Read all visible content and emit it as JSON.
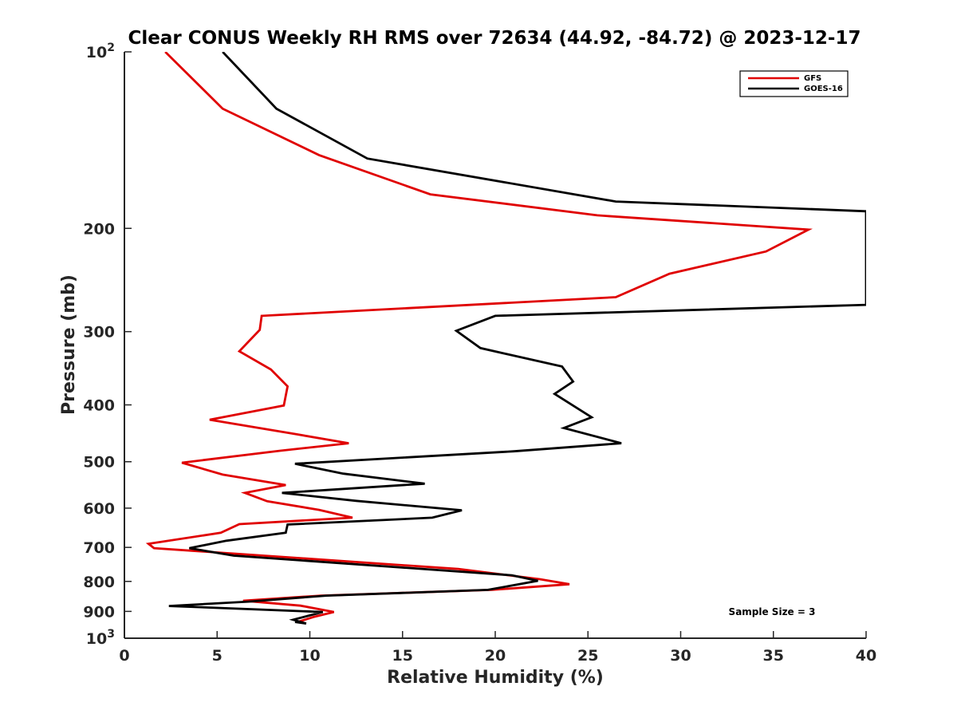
{
  "chart_data": {
    "type": "line",
    "title": "Clear CONUS Weekly RH RMS over 72634 (44.92, -84.72) @ 2023-12-17",
    "xlabel": "Relative Humidity (%)",
    "ylabel": "Pressure (mb)",
    "xlim": [
      0,
      40
    ],
    "ylim": [
      100,
      1000
    ],
    "yscale": "log",
    "yreversed": true,
    "grid": false,
    "legend_position": "top-right",
    "x_ticks": [
      "0",
      "5",
      "10",
      "15",
      "20",
      "25",
      "30",
      "35",
      "40"
    ],
    "y_ticks": [
      {
        "value": 100,
        "base": "10",
        "exp": "2"
      },
      {
        "value": 200,
        "label": "200"
      },
      {
        "value": 300,
        "label": "300"
      },
      {
        "value": 400,
        "label": "400"
      },
      {
        "value": 500,
        "label": "500"
      },
      {
        "value": 600,
        "label": "600"
      },
      {
        "value": 700,
        "label": "700"
      },
      {
        "value": 800,
        "label": "800"
      },
      {
        "value": 900,
        "label": "900"
      },
      {
        "value": 1000,
        "base": "10",
        "exp": "3"
      }
    ],
    "annotation": "Sample Size = 3",
    "series": [
      {
        "name": "GFS",
        "color": "#e00000",
        "points": [
          [
            2.2,
            100
          ],
          [
            5.3,
            125
          ],
          [
            10.5,
            150
          ],
          [
            16.5,
            175
          ],
          [
            25.5,
            190
          ],
          [
            36.9,
            201
          ],
          [
            34.6,
            219
          ],
          [
            29.4,
            239
          ],
          [
            26.5,
            262
          ],
          [
            7.4,
            282
          ],
          [
            7.3,
            298
          ],
          [
            6.2,
            324
          ],
          [
            7.9,
            348
          ],
          [
            8.8,
            372
          ],
          [
            8.6,
            401
          ],
          [
            4.6,
            424
          ],
          [
            9.3,
            449
          ],
          [
            12.1,
            465
          ],
          [
            8.4,
            479
          ],
          [
            3.1,
            502
          ],
          [
            5.3,
            526
          ],
          [
            8.7,
            548
          ],
          [
            6.5,
            565
          ],
          [
            7.7,
            584
          ],
          [
            10.5,
            604
          ],
          [
            12.3,
            623
          ],
          [
            6.2,
            639
          ],
          [
            5.2,
            661
          ],
          [
            1.3,
            690
          ],
          [
            1.6,
            702
          ],
          [
            18.0,
            762
          ],
          [
            22.4,
            793
          ],
          [
            24.0,
            809
          ],
          [
            19.8,
            827
          ],
          [
            10.6,
            846
          ],
          [
            6.4,
            863
          ],
          [
            9.5,
            880
          ],
          [
            11.3,
            902
          ],
          [
            10.2,
            920
          ],
          [
            9.4,
            937
          ]
        ]
      },
      {
        "name": "GOES-16",
        "color": "#000000",
        "points": [
          [
            5.3,
            100
          ],
          [
            8.2,
            125
          ],
          [
            13.1,
            152
          ],
          [
            26.5,
            180
          ],
          [
            40.0,
            187
          ],
          [
            40.0,
            270
          ],
          [
            20.0,
            282
          ],
          [
            17.9,
            299
          ],
          [
            19.2,
            320
          ],
          [
            23.6,
            344
          ],
          [
            24.2,
            365
          ],
          [
            23.2,
            383
          ],
          [
            25.2,
            420
          ],
          [
            23.7,
            438
          ],
          [
            26.8,
            465
          ],
          [
            21.0,
            480
          ],
          [
            9.2,
            504
          ],
          [
            11.8,
            524
          ],
          [
            16.2,
            545
          ],
          [
            8.5,
            565
          ],
          [
            12.5,
            583
          ],
          [
            18.2,
            605
          ],
          [
            16.6,
            623
          ],
          [
            8.8,
            640
          ],
          [
            8.7,
            661
          ],
          [
            5.5,
            682
          ],
          [
            3.5,
            702
          ],
          [
            5.9,
            723
          ],
          [
            20.9,
            781
          ],
          [
            22.3,
            798
          ],
          [
            19.6,
            827
          ],
          [
            10.9,
            846
          ],
          [
            6.7,
            866
          ],
          [
            2.4,
            881
          ],
          [
            10.7,
            902
          ],
          [
            9.1,
            930
          ],
          [
            9.8,
            944
          ],
          [
            9.2,
            938
          ]
        ]
      }
    ]
  }
}
